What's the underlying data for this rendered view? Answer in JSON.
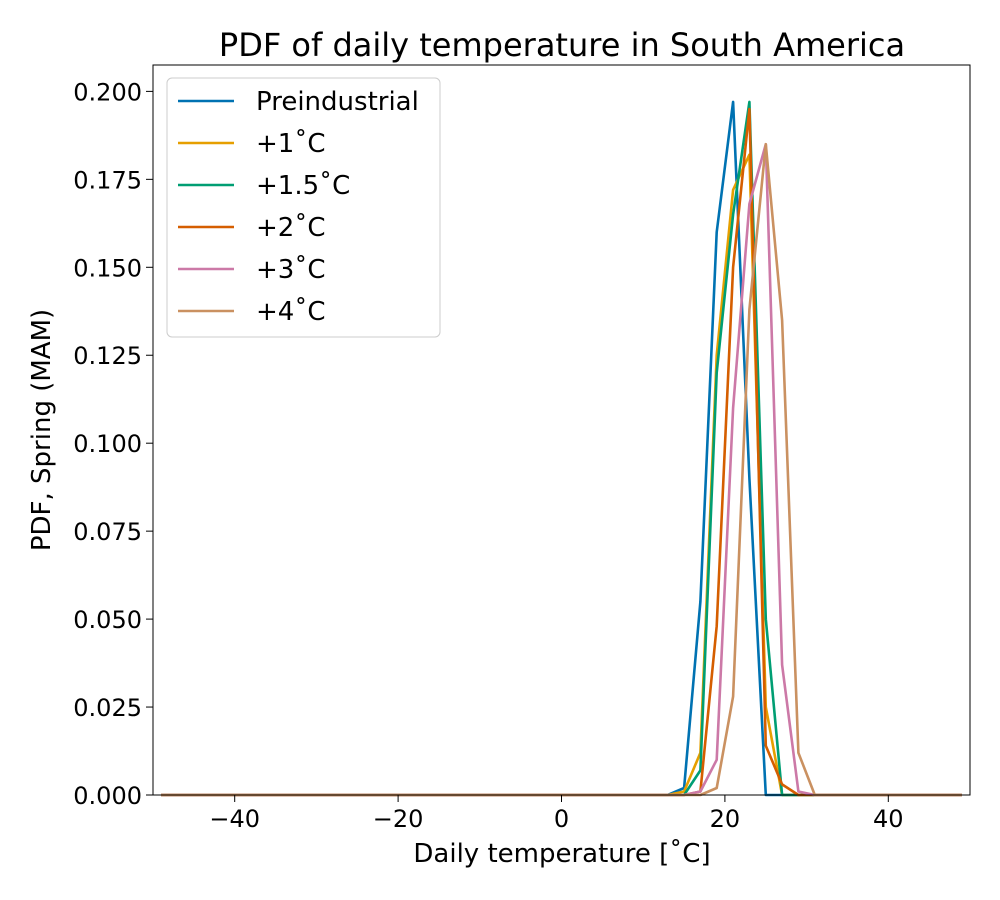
{
  "chart_data": {
    "type": "line",
    "title": "PDF of daily temperature in South America",
    "xlabel": "Daily temperature [˚C]",
    "ylabel": "PDF, Spring (MAM)",
    "xlim": [
      -50,
      50
    ],
    "ylim": [
      0,
      0.2075
    ],
    "xticks": [
      -40,
      -20,
      0,
      20,
      40
    ],
    "xtick_labels": [
      "−40",
      "−20",
      "0",
      "20",
      "40"
    ],
    "yticks": [
      0,
      0.025,
      0.05,
      0.075,
      0.1,
      0.125,
      0.15,
      0.175,
      0.2
    ],
    "ytick_labels": [
      "0.000",
      "0.025",
      "0.050",
      "0.075",
      "0.100",
      "0.125",
      "0.150",
      "0.175",
      "0.200"
    ],
    "grid": false,
    "legend": "upper-left",
    "series": [
      {
        "name": "Preindustrial",
        "color": "#0072b2",
        "x": [
          -49,
          13,
          15,
          17,
          19,
          21,
          23,
          25,
          27,
          49
        ],
        "y": [
          0,
          0,
          0.002,
          0.055,
          0.16,
          0.197,
          0.09,
          0,
          0,
          0
        ]
      },
      {
        "name": "+1˚C",
        "color": "#e69f00",
        "x": [
          -49,
          13,
          15,
          17,
          19,
          21,
          23,
          25,
          27,
          49
        ],
        "y": [
          0,
          0,
          0.001,
          0.012,
          0.125,
          0.172,
          0.182,
          0.025,
          0,
          0
        ]
      },
      {
        "name": "+1.5˚C",
        "color": "#009e73",
        "x": [
          -49,
          15,
          17,
          19,
          21,
          23,
          25,
          27,
          49
        ],
        "y": [
          0,
          0,
          0.007,
          0.12,
          0.165,
          0.197,
          0.05,
          0,
          0
        ]
      },
      {
        "name": "+2˚C",
        "color": "#d55e00",
        "x": [
          -49,
          15,
          17,
          19,
          21,
          23,
          25,
          27,
          29,
          49
        ],
        "y": [
          0,
          0,
          0.001,
          0.048,
          0.15,
          0.195,
          0.014,
          0.003,
          0,
          0
        ]
      },
      {
        "name": "+3˚C",
        "color": "#cc79a7",
        "x": [
          -49,
          15,
          17,
          19,
          21,
          23,
          25,
          27,
          29,
          31,
          49
        ],
        "y": [
          0,
          0,
          0.001,
          0.01,
          0.11,
          0.168,
          0.185,
          0.037,
          0.001,
          0,
          0
        ]
      },
      {
        "name": "+4˚C",
        "color": "#ca9161",
        "x": [
          -49,
          15,
          17,
          19,
          21,
          23,
          25,
          27,
          29,
          31,
          49
        ],
        "y": [
          0,
          0,
          0,
          0.002,
          0.028,
          0.138,
          0.185,
          0.135,
          0.012,
          0,
          0
        ]
      }
    ]
  }
}
